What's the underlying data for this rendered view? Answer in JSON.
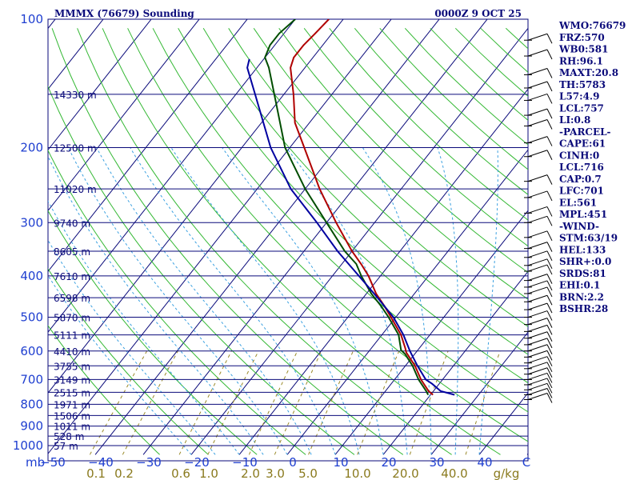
{
  "header": {
    "title": "MMMX (76679) Sounding",
    "valid_time": "0000Z  9 OCT 25"
  },
  "indices": [
    "WMO:76679",
    "FRZ:570",
    "WB0:581",
    "RH:96.1",
    "MAXT:20.8",
    "TH:5783",
    "L57:4.9",
    "LCL:757",
    "LI:0.8",
    "-PARCEL-",
    "CAPE:61",
    "CINH:0",
    "LCL:716",
    "CAP:0.7",
    "LFC:701",
    "EL:561",
    "MPL:451",
    "-WIND-",
    "STM:63/19",
    "HEL:133",
    "SHR+:0.0",
    "SRDS:81",
    "EHI:0.1",
    "BRN:2.2",
    "BSHR:28"
  ],
  "axes": {
    "pressure_unit": "mb",
    "mixing_ratio_unit": "g/kg",
    "temperature_unit": "C"
  },
  "chart_data": {
    "type": "line",
    "title": "MMMX (76679) Sounding",
    "x_axis": {
      "label": "C",
      "ticks": [
        "-50",
        "-40",
        "-30",
        "-20",
        "-10",
        "0",
        "10",
        "20",
        "30",
        "40"
      ],
      "range": [
        -50,
        50
      ],
      "skewed": true
    },
    "y_axis": {
      "label": "mb",
      "scale": "log",
      "ticks": [
        "100",
        "200",
        "300",
        "400",
        "500",
        "600",
        "700",
        "800",
        "900",
        "1000"
      ],
      "range": [
        1000,
        100
      ]
    },
    "mixing_ratio_labels": [
      "0.1",
      "0.2",
      "0.6",
      "1.0",
      "2.0",
      "3.0",
      "5.0",
      "10.0",
      "20.0",
      "40.0"
    ],
    "mixing_ratio_values": [
      0.1,
      0.2,
      0.6,
      1.0,
      2.0,
      3.0,
      5.0,
      10.0,
      20.0,
      40.0
    ],
    "height_levels": [
      {
        "pressure": 150,
        "label": "14330 m"
      },
      {
        "pressure": 200,
        "label": "12500 m"
      },
      {
        "pressure": 250,
        "label": "11020 m"
      },
      {
        "pressure": 300,
        "label": "9740 m"
      },
      {
        "pressure": 350,
        "label": "8605 m"
      },
      {
        "pressure": 400,
        "label": "7610 m"
      },
      {
        "pressure": 450,
        "label": "6598 m"
      },
      {
        "pressure": 500,
        "label": "5870 m"
      },
      {
        "pressure": 550,
        "label": "5111 m"
      },
      {
        "pressure": 600,
        "label": "4410 m"
      },
      {
        "pressure": 650,
        "label": "3755 m"
      },
      {
        "pressure": 700,
        "label": "3149 m"
      },
      {
        "pressure": 750,
        "label": "2515 m"
      },
      {
        "pressure": 800,
        "label": "1971 m"
      },
      {
        "pressure": 850,
        "label": "1506 m"
      },
      {
        "pressure": 900,
        "label": "1011 m"
      },
      {
        "pressure": 950,
        "label": "528 m"
      },
      {
        "pressure": 1000,
        "label": "57 m"
      }
    ],
    "series": [
      {
        "key": "temperature",
        "color": "#b00000",
        "points": [
          [
            760,
            20.5
          ],
          [
            745,
            19.0
          ],
          [
            700,
            15.5
          ],
          [
            650,
            12.0
          ],
          [
            605,
            8.0
          ],
          [
            590,
            7.0
          ],
          [
            550,
            4.0
          ],
          [
            500,
            -1.0
          ],
          [
            470,
            -4.3
          ],
          [
            440,
            -8.0
          ],
          [
            400,
            -12.5
          ],
          [
            375,
            -16.0
          ],
          [
            350,
            -20.0
          ],
          [
            300,
            -28.0
          ],
          [
            250,
            -37.0
          ],
          [
            200,
            -47.0
          ],
          [
            175,
            -53.0
          ],
          [
            150,
            -58.0
          ],
          [
            130,
            -63.0
          ],
          [
            123,
            -64.0
          ],
          [
            115,
            -64.0
          ],
          [
            108,
            -63.5
          ],
          [
            100,
            -63.0
          ]
        ]
      },
      {
        "key": "dewpoint",
        "color": "#004d00",
        "points": [
          [
            760,
            19.5
          ],
          [
            745,
            18.5
          ],
          [
            700,
            15.0
          ],
          [
            650,
            11.5
          ],
          [
            610,
            8.0
          ],
          [
            597,
            6.5
          ],
          [
            550,
            3.5
          ],
          [
            500,
            -1.5
          ],
          [
            470,
            -5.0
          ],
          [
            440,
            -9.0
          ],
          [
            400,
            -14.0
          ],
          [
            375,
            -17.0
          ],
          [
            350,
            -21.5
          ],
          [
            300,
            -30.0
          ],
          [
            250,
            -40.0
          ],
          [
            200,
            -51.0
          ],
          [
            150,
            -62.0
          ],
          [
            130,
            -67.5
          ],
          [
            123,
            -70.0
          ],
          [
            115,
            -71.0
          ],
          [
            108,
            -71.0
          ],
          [
            100,
            -70.0
          ]
        ]
      },
      {
        "key": "parcel",
        "color": "#0000a0",
        "points": [
          [
            760,
            25.0
          ],
          [
            745,
            21.5
          ],
          [
            716,
            18.5
          ],
          [
            700,
            16.5
          ],
          [
            650,
            12.5
          ],
          [
            600,
            8.5
          ],
          [
            550,
            4.5
          ],
          [
            500,
            -0.5
          ],
          [
            450,
            -7.0
          ],
          [
            400,
            -14.5
          ],
          [
            350,
            -23.0
          ],
          [
            300,
            -32.0
          ],
          [
            250,
            -43.0
          ],
          [
            200,
            -54.0
          ],
          [
            150,
            -66.0
          ],
          [
            130,
            -72.0
          ],
          [
            124,
            -73.0
          ]
        ]
      }
    ],
    "wind_barbs_side": "right"
  },
  "colors": {
    "isobar": "#0a0a7a",
    "isotherm": "#0a0a7a",
    "dry_adiabat": "#34b834",
    "moist_adiabat": "#34b834",
    "mixing_ratio": "#9a8a2a",
    "isotherm_dashed": "#3aa0e0",
    "pressure_label": "#1f3fd0",
    "mixing_label": "#8a7a1e",
    "text": "#0a0a7a"
  }
}
